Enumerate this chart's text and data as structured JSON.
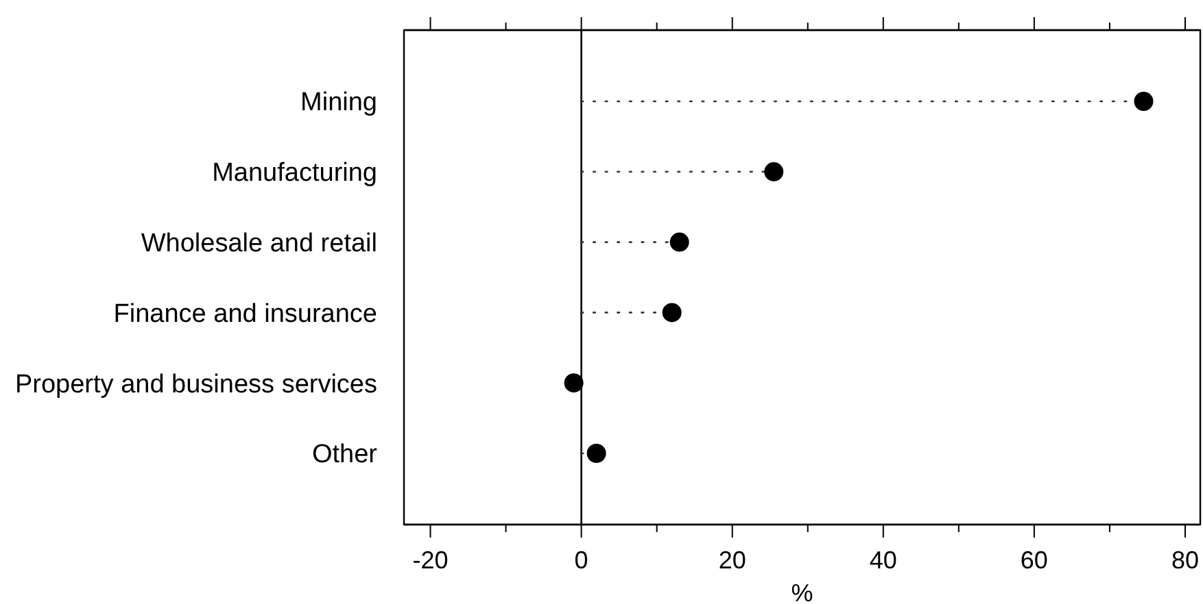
{
  "chart_data": {
    "type": "lollipop",
    "orientation": "horizontal",
    "categories": [
      "Mining",
      "Manufacturing",
      "Wholesale and retail",
      "Finance and insurance",
      "Property and business services",
      "Other"
    ],
    "values": [
      74.5,
      25.5,
      13,
      12,
      -1,
      2
    ],
    "color": "#000000",
    "marker": "circle",
    "line_style": "dotted",
    "grid": false,
    "xlim": [
      -23.5,
      82
    ],
    "xticks": [
      -20,
      {
        "value": -10,
        "label": null
      },
      0,
      {
        "value": 10,
        "label": null
      },
      20,
      {
        "value": 30,
        "label": null
      },
      40,
      {
        "value": 50,
        "label": null
      },
      60,
      {
        "value": 70,
        "label": null
      },
      80
    ],
    "xlabel": "%",
    "ref_lines": [
      {
        "axis": "x",
        "value": 0,
        "color": "#000000"
      }
    ]
  }
}
